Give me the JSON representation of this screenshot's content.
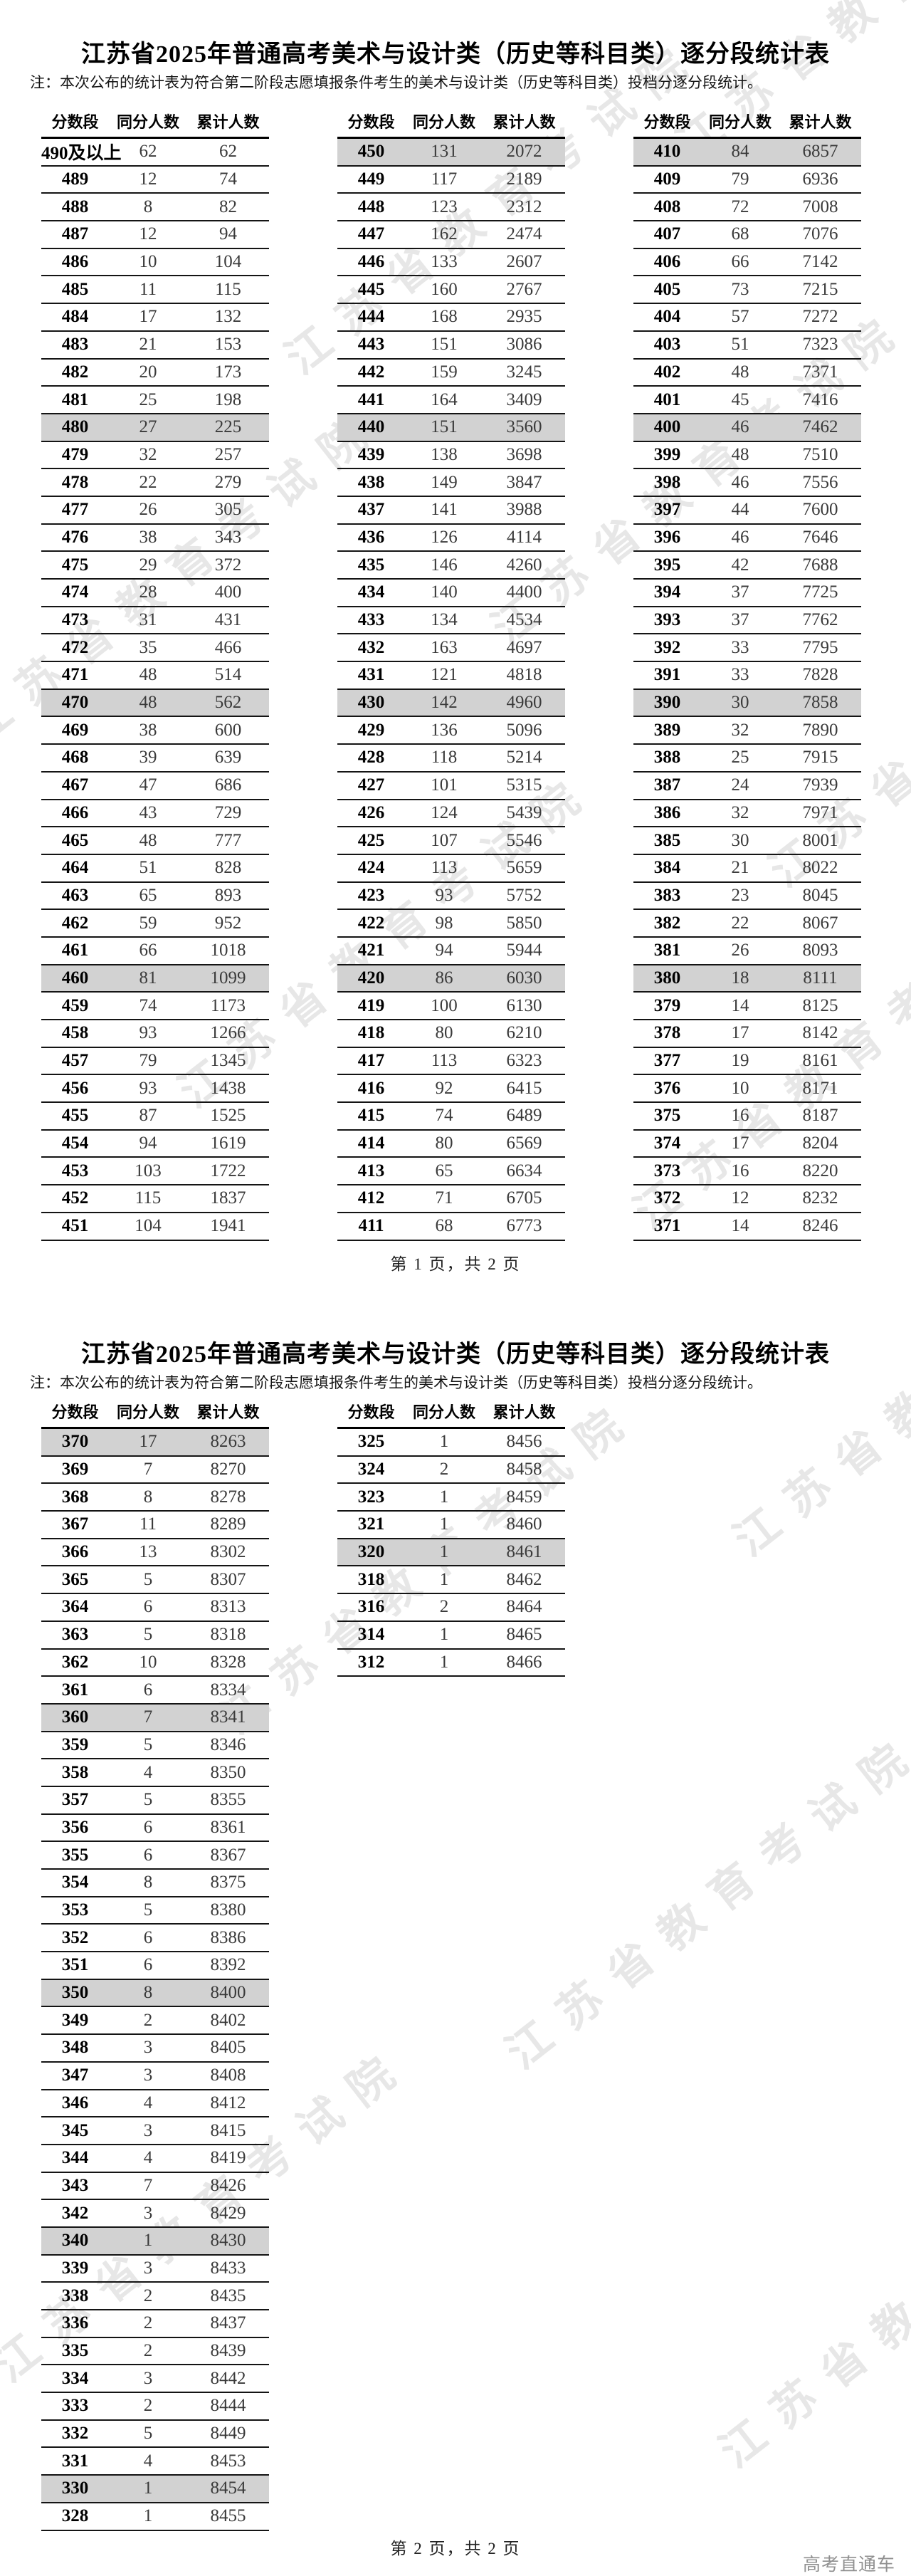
{
  "watermark": "江苏省教育考试院",
  "brand": "高考直通车",
  "colors": {
    "highlight_row": "#d2d2d2"
  },
  "page1": {
    "title": "江苏省2025年普通高考美术与设计类（历史等科目类）逐分段统计表",
    "note": "注：本次公布的统计表为符合第二阶段志愿填报条件考生的美术与设计类（历史等科目类）投档分逐分段统计。",
    "columns": [
      "分数段",
      "同分人数",
      "累计人数"
    ],
    "footer": "第 1 页，共 2 页",
    "tables": [
      {
        "rows": [
          [
            "490及以上",
            62,
            62
          ],
          [
            "489",
            12,
            74
          ],
          [
            "488",
            8,
            82
          ],
          [
            "487",
            12,
            94
          ],
          [
            "486",
            10,
            104
          ],
          [
            "485",
            11,
            115
          ],
          [
            "484",
            17,
            132
          ],
          [
            "483",
            21,
            153
          ],
          [
            "482",
            20,
            173
          ],
          [
            "481",
            25,
            198
          ],
          [
            "480",
            27,
            225
          ],
          [
            "479",
            32,
            257
          ],
          [
            "478",
            22,
            279
          ],
          [
            "477",
            26,
            305
          ],
          [
            "476",
            38,
            343
          ],
          [
            "475",
            29,
            372
          ],
          [
            "474",
            28,
            400
          ],
          [
            "473",
            31,
            431
          ],
          [
            "472",
            35,
            466
          ],
          [
            "471",
            48,
            514
          ],
          [
            "470",
            48,
            562
          ],
          [
            "469",
            38,
            600
          ],
          [
            "468",
            39,
            639
          ],
          [
            "467",
            47,
            686
          ],
          [
            "466",
            43,
            729
          ],
          [
            "465",
            48,
            777
          ],
          [
            "464",
            51,
            828
          ],
          [
            "463",
            65,
            893
          ],
          [
            "462",
            59,
            952
          ],
          [
            "461",
            66,
            1018
          ],
          [
            "460",
            81,
            1099
          ],
          [
            "459",
            74,
            1173
          ],
          [
            "458",
            93,
            1266
          ],
          [
            "457",
            79,
            1345
          ],
          [
            "456",
            93,
            1438
          ],
          [
            "455",
            87,
            1525
          ],
          [
            "454",
            94,
            1619
          ],
          [
            "453",
            103,
            1722
          ],
          [
            "452",
            115,
            1837
          ],
          [
            "451",
            104,
            1941
          ]
        ]
      },
      {
        "rows": [
          [
            "450",
            131,
            2072
          ],
          [
            "449",
            117,
            2189
          ],
          [
            "448",
            123,
            2312
          ],
          [
            "447",
            162,
            2474
          ],
          [
            "446",
            133,
            2607
          ],
          [
            "445",
            160,
            2767
          ],
          [
            "444",
            168,
            2935
          ],
          [
            "443",
            151,
            3086
          ],
          [
            "442",
            159,
            3245
          ],
          [
            "441",
            164,
            3409
          ],
          [
            "440",
            151,
            3560
          ],
          [
            "439",
            138,
            3698
          ],
          [
            "438",
            149,
            3847
          ],
          [
            "437",
            141,
            3988
          ],
          [
            "436",
            126,
            4114
          ],
          [
            "435",
            146,
            4260
          ],
          [
            "434",
            140,
            4400
          ],
          [
            "433",
            134,
            4534
          ],
          [
            "432",
            163,
            4697
          ],
          [
            "431",
            121,
            4818
          ],
          [
            "430",
            142,
            4960
          ],
          [
            "429",
            136,
            5096
          ],
          [
            "428",
            118,
            5214
          ],
          [
            "427",
            101,
            5315
          ],
          [
            "426",
            124,
            5439
          ],
          [
            "425",
            107,
            5546
          ],
          [
            "424",
            113,
            5659
          ],
          [
            "423",
            93,
            5752
          ],
          [
            "422",
            98,
            5850
          ],
          [
            "421",
            94,
            5944
          ],
          [
            "420",
            86,
            6030
          ],
          [
            "419",
            100,
            6130
          ],
          [
            "418",
            80,
            6210
          ],
          [
            "417",
            113,
            6323
          ],
          [
            "416",
            92,
            6415
          ],
          [
            "415",
            74,
            6489
          ],
          [
            "414",
            80,
            6569
          ],
          [
            "413",
            65,
            6634
          ],
          [
            "412",
            71,
            6705
          ],
          [
            "411",
            68,
            6773
          ]
        ]
      },
      {
        "rows": [
          [
            "410",
            84,
            6857
          ],
          [
            "409",
            79,
            6936
          ],
          [
            "408",
            72,
            7008
          ],
          [
            "407",
            68,
            7076
          ],
          [
            "406",
            66,
            7142
          ],
          [
            "405",
            73,
            7215
          ],
          [
            "404",
            57,
            7272
          ],
          [
            "403",
            51,
            7323
          ],
          [
            "402",
            48,
            7371
          ],
          [
            "401",
            45,
            7416
          ],
          [
            "400",
            46,
            7462
          ],
          [
            "399",
            48,
            7510
          ],
          [
            "398",
            46,
            7556
          ],
          [
            "397",
            44,
            7600
          ],
          [
            "396",
            46,
            7646
          ],
          [
            "395",
            42,
            7688
          ],
          [
            "394",
            37,
            7725
          ],
          [
            "393",
            37,
            7762
          ],
          [
            "392",
            33,
            7795
          ],
          [
            "391",
            33,
            7828
          ],
          [
            "390",
            30,
            7858
          ],
          [
            "389",
            32,
            7890
          ],
          [
            "388",
            25,
            7915
          ],
          [
            "387",
            24,
            7939
          ],
          [
            "386",
            32,
            7971
          ],
          [
            "385",
            30,
            8001
          ],
          [
            "384",
            21,
            8022
          ],
          [
            "383",
            23,
            8045
          ],
          [
            "382",
            22,
            8067
          ],
          [
            "381",
            26,
            8093
          ],
          [
            "380",
            18,
            8111
          ],
          [
            "379",
            14,
            8125
          ],
          [
            "378",
            17,
            8142
          ],
          [
            "377",
            19,
            8161
          ],
          [
            "376",
            10,
            8171
          ],
          [
            "375",
            16,
            8187
          ],
          [
            "374",
            17,
            8204
          ],
          [
            "373",
            16,
            8220
          ],
          [
            "372",
            12,
            8232
          ],
          [
            "371",
            14,
            8246
          ]
        ]
      }
    ]
  },
  "page2": {
    "title": "江苏省2025年普通高考美术与设计类（历史等科目类）逐分段统计表",
    "note": "注：本次公布的统计表为符合第二阶段志愿填报条件考生的美术与设计类（历史等科目类）投档分逐分段统计。",
    "columns": [
      "分数段",
      "同分人数",
      "累计人数"
    ],
    "footer": "第 2 页，共 2 页",
    "tables": [
      {
        "rows": [
          [
            "370",
            17,
            8263
          ],
          [
            "369",
            7,
            8270
          ],
          [
            "368",
            8,
            8278
          ],
          [
            "367",
            11,
            8289
          ],
          [
            "366",
            13,
            8302
          ],
          [
            "365",
            5,
            8307
          ],
          [
            "364",
            6,
            8313
          ],
          [
            "363",
            5,
            8318
          ],
          [
            "362",
            10,
            8328
          ],
          [
            "361",
            6,
            8334
          ],
          [
            "360",
            7,
            8341
          ],
          [
            "359",
            5,
            8346
          ],
          [
            "358",
            4,
            8350
          ],
          [
            "357",
            5,
            8355
          ],
          [
            "356",
            6,
            8361
          ],
          [
            "355",
            6,
            8367
          ],
          [
            "354",
            8,
            8375
          ],
          [
            "353",
            5,
            8380
          ],
          [
            "352",
            6,
            8386
          ],
          [
            "351",
            6,
            8392
          ],
          [
            "350",
            8,
            8400
          ],
          [
            "349",
            2,
            8402
          ],
          [
            "348",
            3,
            8405
          ],
          [
            "347",
            3,
            8408
          ],
          [
            "346",
            4,
            8412
          ],
          [
            "345",
            3,
            8415
          ],
          [
            "344",
            4,
            8419
          ],
          [
            "343",
            7,
            8426
          ],
          [
            "342",
            3,
            8429
          ],
          [
            "340",
            1,
            8430
          ],
          [
            "339",
            3,
            8433
          ],
          [
            "338",
            2,
            8435
          ],
          [
            "336",
            2,
            8437
          ],
          [
            "335",
            2,
            8439
          ],
          [
            "334",
            3,
            8442
          ],
          [
            "333",
            2,
            8444
          ],
          [
            "332",
            5,
            8449
          ],
          [
            "331",
            4,
            8453
          ],
          [
            "330",
            1,
            8454
          ],
          [
            "328",
            1,
            8455
          ]
        ]
      },
      {
        "rows": [
          [
            "325",
            1,
            8456
          ],
          [
            "324",
            2,
            8458
          ],
          [
            "323",
            1,
            8459
          ],
          [
            "321",
            1,
            8460
          ],
          [
            "320",
            1,
            8461
          ],
          [
            "318",
            1,
            8462
          ],
          [
            "316",
            2,
            8464
          ],
          [
            "314",
            1,
            8465
          ],
          [
            "312",
            1,
            8466
          ]
        ]
      }
    ]
  }
}
